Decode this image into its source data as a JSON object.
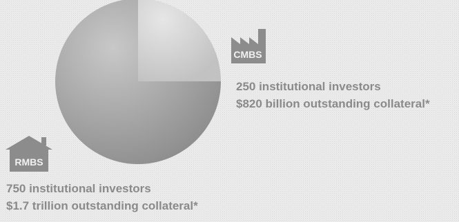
{
  "chart_data": {
    "type": "pie",
    "slices": [
      {
        "label": "CMBS",
        "value": 250,
        "color": "#cfcfcf"
      },
      {
        "label": "RMBS",
        "value": 750,
        "color": "#8e8e8e"
      }
    ]
  },
  "cmbs": {
    "badge": "CMBS",
    "investors": "250 institutional investors",
    "collateral": "$820 billion outstanding collateral*"
  },
  "rmbs": {
    "badge": "RMBS",
    "investors": "750 institutional investors",
    "collateral": "$1.7 trillion outstanding collateral*"
  },
  "colors": {
    "text": "#8a8a8a",
    "badge": "#8c8c8c",
    "background": "#f1f1f1"
  },
  "icons": {
    "cmbs": "factory-icon",
    "rmbs": "house-icon"
  }
}
